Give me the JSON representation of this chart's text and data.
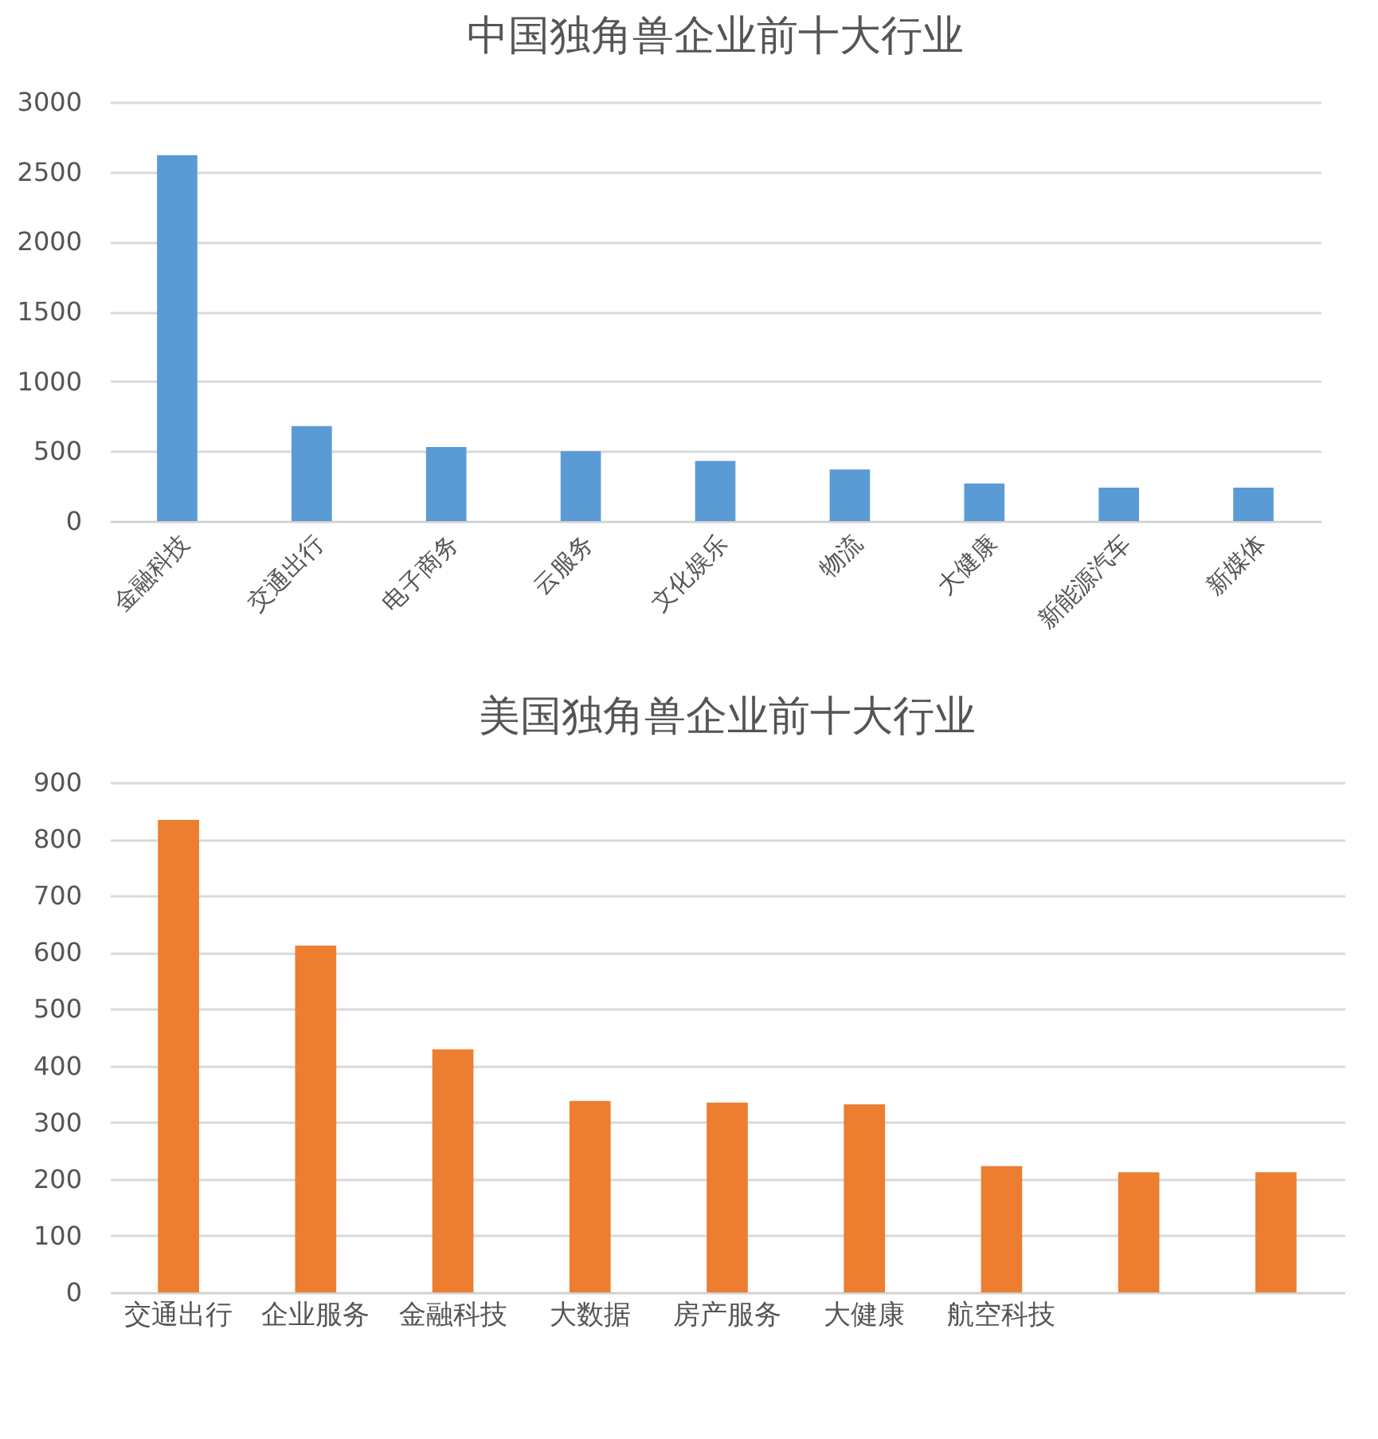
{
  "chart_data": [
    {
      "type": "bar",
      "title": "中国独角兽企业前十大行业",
      "categories": [
        "金融科技",
        "交通出行",
        "电子商务",
        "云服务",
        "文化娱乐",
        "物流",
        "大健康",
        "新能源汽车",
        "新媒体"
      ],
      "series": [
        {
          "color": "#5b9bd5",
          "values": [
            2620,
            680,
            530,
            500,
            430,
            370,
            270,
            240,
            240
          ]
        }
      ],
      "ylim": [
        0,
        3000
      ],
      "yticks": [
        0,
        500,
        1000,
        1500,
        2000,
        2500,
        3000
      ],
      "grid": "y",
      "legend": false
    },
    {
      "type": "bar",
      "title": "美国独角兽企业前十大行业",
      "categories": [
        "交通出行",
        "企业服务",
        "金融科技",
        "大数据",
        "房产服务",
        "大健康",
        "航空科技",
        null,
        null
      ],
      "series": [
        {
          "color": "#ed7d31",
          "values": [
            834,
            612,
            429,
            338,
            335,
            332,
            223,
            212,
            212
          ]
        }
      ],
      "ylim": [
        0,
        900
      ],
      "yticks": [
        0,
        100,
        200,
        300,
        400,
        500,
        600,
        700,
        800,
        900
      ],
      "grid": "y",
      "legend": false
    }
  ]
}
